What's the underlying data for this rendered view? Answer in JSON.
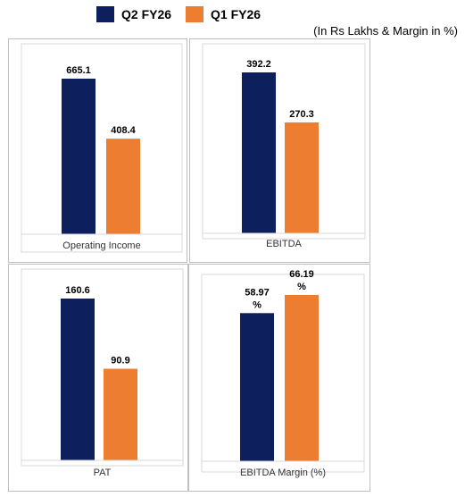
{
  "legend": {
    "series": [
      {
        "name": "Q2 FY26",
        "color": "#0d1f5c"
      },
      {
        "name": "Q1 FY26",
        "color": "#ed7d31"
      }
    ]
  },
  "units_note": "(In Rs Lakhs & Margin in %)",
  "chart_data": [
    {
      "type": "bar",
      "categories": [
        "Operating Income"
      ],
      "series": [
        {
          "name": "Q2 FY26",
          "values": [
            665.1
          ],
          "labels": [
            "665.1"
          ]
        },
        {
          "name": "Q1 FY26",
          "values": [
            408.4
          ],
          "labels": [
            "408.4"
          ]
        }
      ],
      "ylim": [
        0,
        800
      ]
    },
    {
      "type": "bar",
      "categories": [
        "EBITDA"
      ],
      "series": [
        {
          "name": "Q2 FY26",
          "values": [
            392.2
          ],
          "labels": [
            "392.2"
          ]
        },
        {
          "name": "Q1 FY26",
          "values": [
            270.3
          ],
          "labels": [
            "270.3"
          ]
        }
      ],
      "ylim": [
        0,
        450
      ]
    },
    {
      "type": "bar",
      "categories": [
        "PAT"
      ],
      "series": [
        {
          "name": "Q2 FY26",
          "values": [
            160.6
          ],
          "labels": [
            "160.6"
          ]
        },
        {
          "name": "Q1 FY26",
          "values": [
            90.9
          ],
          "labels": [
            "90.9"
          ]
        }
      ],
      "ylim": [
        0,
        180
      ]
    },
    {
      "type": "bar",
      "categories": [
        "EBITDA Margin (%)"
      ],
      "series": [
        {
          "name": "Q2 FY26",
          "values": [
            58.97
          ],
          "labels": [
            "58.97",
            "%"
          ]
        },
        {
          "name": "Q1 FY26",
          "values": [
            66.19
          ],
          "labels": [
            "66.19",
            "%"
          ]
        }
      ],
      "ylim": [
        0,
        70
      ]
    }
  ]
}
